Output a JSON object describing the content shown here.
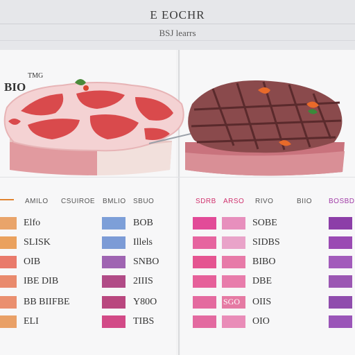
{
  "header": {
    "title": "E EOCHR",
    "subtitle": "BSJ learrs"
  },
  "left_label": {
    "small": "TMG",
    "big": "BIO"
  },
  "columns": [
    {
      "header": "AMILO",
      "color": "#555555"
    },
    {
      "header": "CSUIROE",
      "color": "#555555"
    },
    {
      "header": "BMLIO",
      "color": "#555555"
    },
    {
      "header": "SBUO",
      "color": "#555555"
    },
    {
      "header": "SDRB",
      "color": "#d0326e"
    },
    {
      "header": "ARSO",
      "color": "#d0326e"
    },
    {
      "header": "RIVO",
      "color": "#555555"
    },
    {
      "header": "BIIO",
      "color": "#555555"
    },
    {
      "header": "BOSBD",
      "color": "#a03aa6"
    }
  ],
  "left_rows": [
    {
      "c1": "Elfo",
      "c2": "BOB",
      "sw1": "#e9a46a",
      "sw2": "#7d9fd8"
    },
    {
      "c1": "SLISK",
      "c2": "Illels",
      "sw1": "#eaa15e",
      "sw2": "#7c9bd6"
    },
    {
      "c1": "OIB",
      "c2": "SNBO",
      "sw1": "#e97a6b",
      "sw2": "#9f64b2"
    },
    {
      "c1": "IBE DIB",
      "c2": "2IIIS",
      "sw1": "#e98a6d",
      "sw2": "#b14b87"
    },
    {
      "c1": "BB BIIFBE",
      "c2": "Y80O",
      "sw1": "#ea8f6f",
      "sw2": "#b9477f"
    },
    {
      "c1": "ELI",
      "c2": "TIBS",
      "sw1": "#e9a067",
      "sw2": "#d24a87"
    }
  ],
  "right_rows": [
    {
      "c1": "",
      "c2": "SOBE",
      "sw1": "#e24b98",
      "sw2": "#e78fbd",
      "sw3": "#8c3ea8"
    },
    {
      "c1": "",
      "c2": "SIDBS",
      "sw1": "#e6649f",
      "sw2": "#e9a3c9",
      "sw3": "#9a4ab3"
    },
    {
      "c1": "",
      "c2": "BIBO",
      "sw1": "#e55591",
      "sw2": "#e77aa8",
      "sw3": "#a25bbb"
    },
    {
      "c1": "",
      "c2": "DBE",
      "sw1": "#e6609a",
      "sw2": "#e87cab",
      "sw3": "#9b57b3"
    },
    {
      "c1": "SGO",
      "c2": "OIIS",
      "sw1": "#e46a9f",
      "sw2": "#e57aa3",
      "sw3": "#8f4cad"
    },
    {
      "c1": "",
      "c2": "OIO",
      "sw1": "#e36aa0",
      "sw2": "#e98cb8",
      "sw3": "#9a55b8"
    }
  ]
}
